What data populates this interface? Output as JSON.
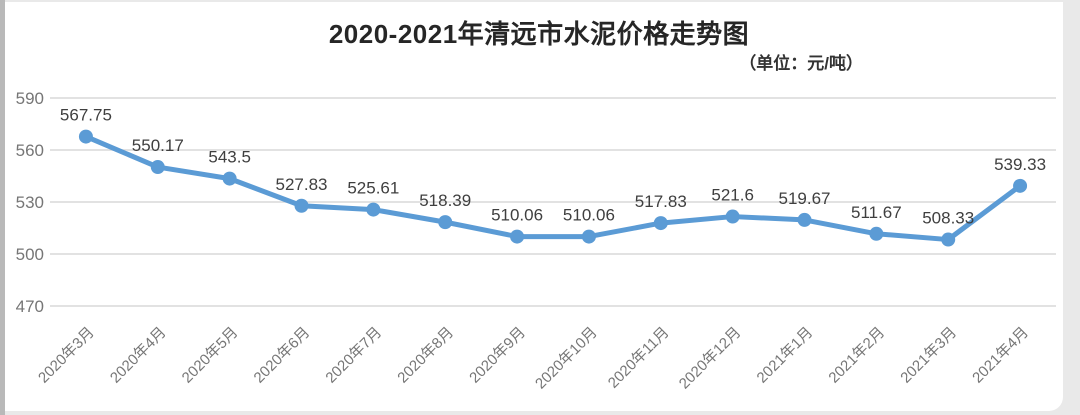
{
  "chart_data": {
    "type": "line",
    "title": "2020-2021年清远市水泥价格走势图",
    "unit_label": "（单位：元/吨）",
    "ylabel": "",
    "xlabel": "",
    "categories": [
      "2020年3月",
      "2020年4月",
      "2020年5月",
      "2020年6月",
      "2020年7月",
      "2020年8月",
      "2020年9月",
      "2020年10月",
      "2020年11月",
      "2020年12月",
      "2021年1月",
      "2021年2月",
      "2021年3月",
      "2021年4月"
    ],
    "values": [
      567.75,
      550.17,
      543.5,
      527.83,
      525.61,
      518.39,
      510.06,
      510.06,
      517.83,
      521.6,
      519.67,
      511.67,
      508.33,
      539.33
    ],
    "ylim": [
      470,
      590
    ],
    "yticks": [
      590,
      560,
      530,
      500,
      470
    ],
    "grid": true,
    "legend_position": "none",
    "x_tick_rotation_deg": -45,
    "line_color": "#5b9bd5",
    "grid_color": "#d9d9d9",
    "axis_text_color": "#767676",
    "data_label_color": "#3f3f3f"
  }
}
